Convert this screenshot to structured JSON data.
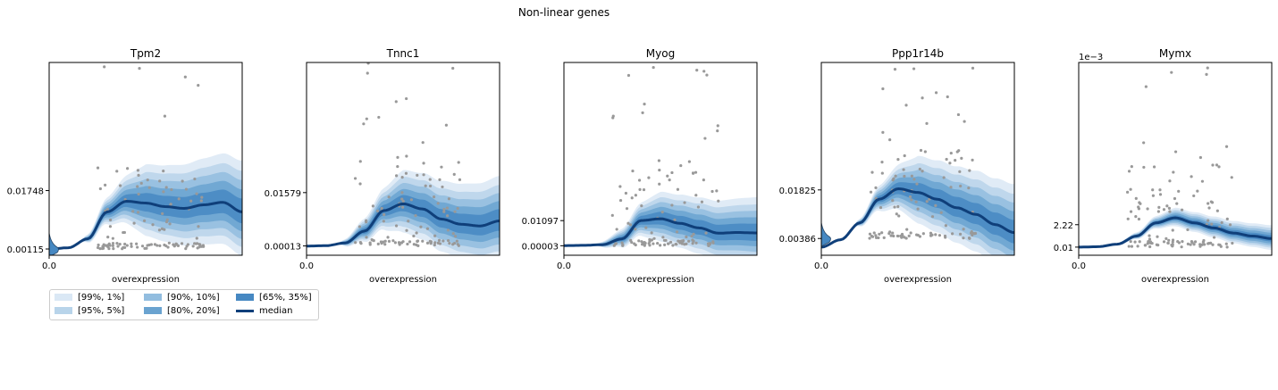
{
  "figure_title": "Non-linear genes",
  "colors": {
    "band_99_1": "#dae8f5",
    "band_95_5": "#b8d4ea",
    "band_90_10": "#92bddf",
    "band_80_20": "#6aa3d0",
    "band_65_35": "#4688c2",
    "median": "#0f3f7a",
    "points": "#999999"
  },
  "legend": {
    "items": [
      {
        "label": "[99%, 1%]",
        "color": "#dae8f5",
        "kind": "band"
      },
      {
        "label": "[95%, 5%]",
        "color": "#b8d4ea",
        "kind": "band"
      },
      {
        "label": "[90%, 10%]",
        "color": "#92bddf",
        "kind": "band"
      },
      {
        "label": "[80%, 20%]",
        "color": "#6aa3d0",
        "kind": "band"
      },
      {
        "label": "[65%, 35%]",
        "color": "#4688c2",
        "kind": "band"
      },
      {
        "label": "median",
        "color": "#0f3f7a",
        "kind": "line"
      }
    ]
  },
  "chart_data": [
    {
      "type": "line",
      "title": "Tpm2",
      "xlabel": "overexpression",
      "x_ticks": [
        "0.0"
      ],
      "y_ticks": [
        "0.00115",
        "0.01748"
      ],
      "y_tick_values": [
        0.00115,
        0.01748
      ],
      "ylim": [
        -0.0006,
        0.0533
      ],
      "offset_text": "",
      "median": {
        "x": [
          0,
          0.1,
          0.2,
          0.3,
          0.4,
          0.5,
          0.6,
          0.7,
          0.8,
          0.9,
          1.0
        ],
        "y": [
          0.0011,
          0.0015,
          0.004,
          0.0115,
          0.0145,
          0.014,
          0.013,
          0.0125,
          0.0135,
          0.0142,
          0.0115
        ]
      },
      "band_width": 0.012,
      "density_blob": true
    },
    {
      "type": "line",
      "title": "Tnnc1",
      "xlabel": "overexpression",
      "x_ticks": [
        "0.0"
      ],
      "y_ticks": [
        "0.00013",
        "0.01579"
      ],
      "y_tick_values": [
        0.00013,
        0.01579
      ],
      "ylim": [
        -0.0026,
        0.054
      ],
      "offset_text": "",
      "median": {
        "x": [
          0,
          0.1,
          0.2,
          0.3,
          0.4,
          0.5,
          0.6,
          0.7,
          0.8,
          0.9,
          1.0
        ],
        "y": [
          0.0001,
          0.0002,
          0.001,
          0.0045,
          0.0105,
          0.0125,
          0.011,
          0.008,
          0.0065,
          0.006,
          0.0075
        ]
      },
      "band_width": 0.011,
      "density_blob": false
    },
    {
      "type": "line",
      "title": "Myog",
      "xlabel": "overexpression",
      "x_ticks": [
        "0.0"
      ],
      "y_ticks": [
        "0.00003",
        "0.01097"
      ],
      "y_tick_values": [
        3e-05,
        0.01097
      ],
      "ylim": [
        -0.0041,
        0.0798
      ],
      "offset_text": "",
      "median": {
        "x": [
          0,
          0.1,
          0.2,
          0.3,
          0.4,
          0.5,
          0.6,
          0.7,
          0.8,
          0.9,
          1.0
        ],
        "y": [
          0.0001,
          0.0002,
          0.0005,
          0.003,
          0.011,
          0.0118,
          0.0098,
          0.0078,
          0.0055,
          0.0058,
          0.0056
        ]
      },
      "band_width": 0.013,
      "density_blob": false
    },
    {
      "type": "line",
      "title": "Ppp1r14b",
      "xlabel": "overexpression",
      "x_ticks": [
        "0.0"
      ],
      "y_ticks": [
        "0.00386",
        "0.01825"
      ],
      "y_tick_values": [
        0.00386,
        0.01825
      ],
      "ylim": [
        -0.0011,
        0.056
      ],
      "offset_text": "",
      "median": {
        "x": [
          0,
          0.1,
          0.2,
          0.3,
          0.4,
          0.5,
          0.6,
          0.7,
          0.8,
          0.9,
          1.0
        ],
        "y": [
          0.0013,
          0.0035,
          0.0085,
          0.0155,
          0.0186,
          0.0175,
          0.0155,
          0.013,
          0.011,
          0.008,
          0.0056
        ]
      },
      "band_width": 0.012,
      "density_blob": true
    },
    {
      "type": "line",
      "title": "Mymx",
      "xlabel": "overexpression",
      "x_ticks": [
        "0.0"
      ],
      "y_ticks": [
        "0.01",
        "2.22"
      ],
      "y_tick_values": [
        0.01,
        2.22
      ],
      "ylim": [
        -0.79,
        18.2
      ],
      "offset_text": "1e−3",
      "median": {
        "x": [
          0,
          0.1,
          0.2,
          0.3,
          0.4,
          0.5,
          0.6,
          0.7,
          0.8,
          0.9,
          1.0
        ],
        "y": [
          0.01,
          0.05,
          0.3,
          1.1,
          2.4,
          2.9,
          2.4,
          1.9,
          1.4,
          1.1,
          0.85
        ]
      },
      "band_width": 1.1,
      "density_blob": false
    }
  ]
}
